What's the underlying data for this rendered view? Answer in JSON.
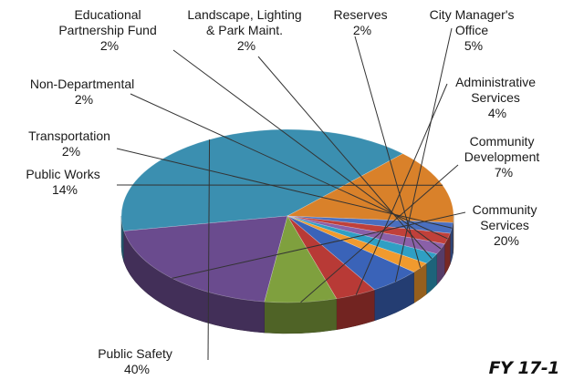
{
  "chart_data": {
    "type": "pie",
    "title": "",
    "style": "3d-exploded-none",
    "slices": [
      {
        "name": "Public Safety",
        "value": 40,
        "label": "40%",
        "color": "#3b8fb0"
      },
      {
        "name": "Public Works",
        "value": 14,
        "label": "14%",
        "color": "#d9812a"
      },
      {
        "name": "Transportation",
        "value": 2,
        "label": "2%",
        "color": "#4a6fbf"
      },
      {
        "name": "Non-Departmental",
        "value": 2,
        "label": "2%",
        "color": "#c0403a"
      },
      {
        "name": "Educational Partnership Fund",
        "value": 2,
        "label": "2%",
        "color": "#8a60a8"
      },
      {
        "name": "Landscape, Lighting & Park Maint.",
        "value": 2,
        "label": "2%",
        "color": "#2f9fc4"
      },
      {
        "name": "Reserves",
        "value": 2,
        "label": "2%",
        "color": "#f09a2e"
      },
      {
        "name": "City Manager's Office",
        "value": 5,
        "label": "5%",
        "color": "#3a63b8"
      },
      {
        "name": "Administrative Services",
        "value": 4,
        "label": "4%",
        "color": "#b83a36"
      },
      {
        "name": "Community Development",
        "value": 7,
        "label": "7%",
        "color": "#7fa03e"
      },
      {
        "name": "Community Services",
        "value": 20,
        "label": "20%",
        "color": "#6a4b8e"
      }
    ]
  },
  "labels": {
    "public_safety": [
      "Public Safety",
      "40%"
    ],
    "public_works": [
      "Public Works",
      "14%"
    ],
    "transportation": [
      "Transportation",
      "2%"
    ],
    "non_departmental": [
      "Non-Departmental",
      "2%"
    ],
    "educational": [
      "Educational",
      "Partnership Fund",
      "2%"
    ],
    "landscape": [
      "Landscape,  Lighting",
      "& Park Maint.",
      "2%"
    ],
    "reserves": [
      "Reserves",
      "2%"
    ],
    "city_manager": [
      "City Manager's",
      "Office",
      "5%"
    ],
    "administrative": [
      "Administrative",
      "Services",
      "4%"
    ],
    "community_dev": [
      "Community",
      "Development",
      "7%"
    ],
    "community_svc": [
      "Community",
      "Services",
      "20%"
    ]
  },
  "footer": {
    "fiscal_year": "FY 17-1"
  }
}
